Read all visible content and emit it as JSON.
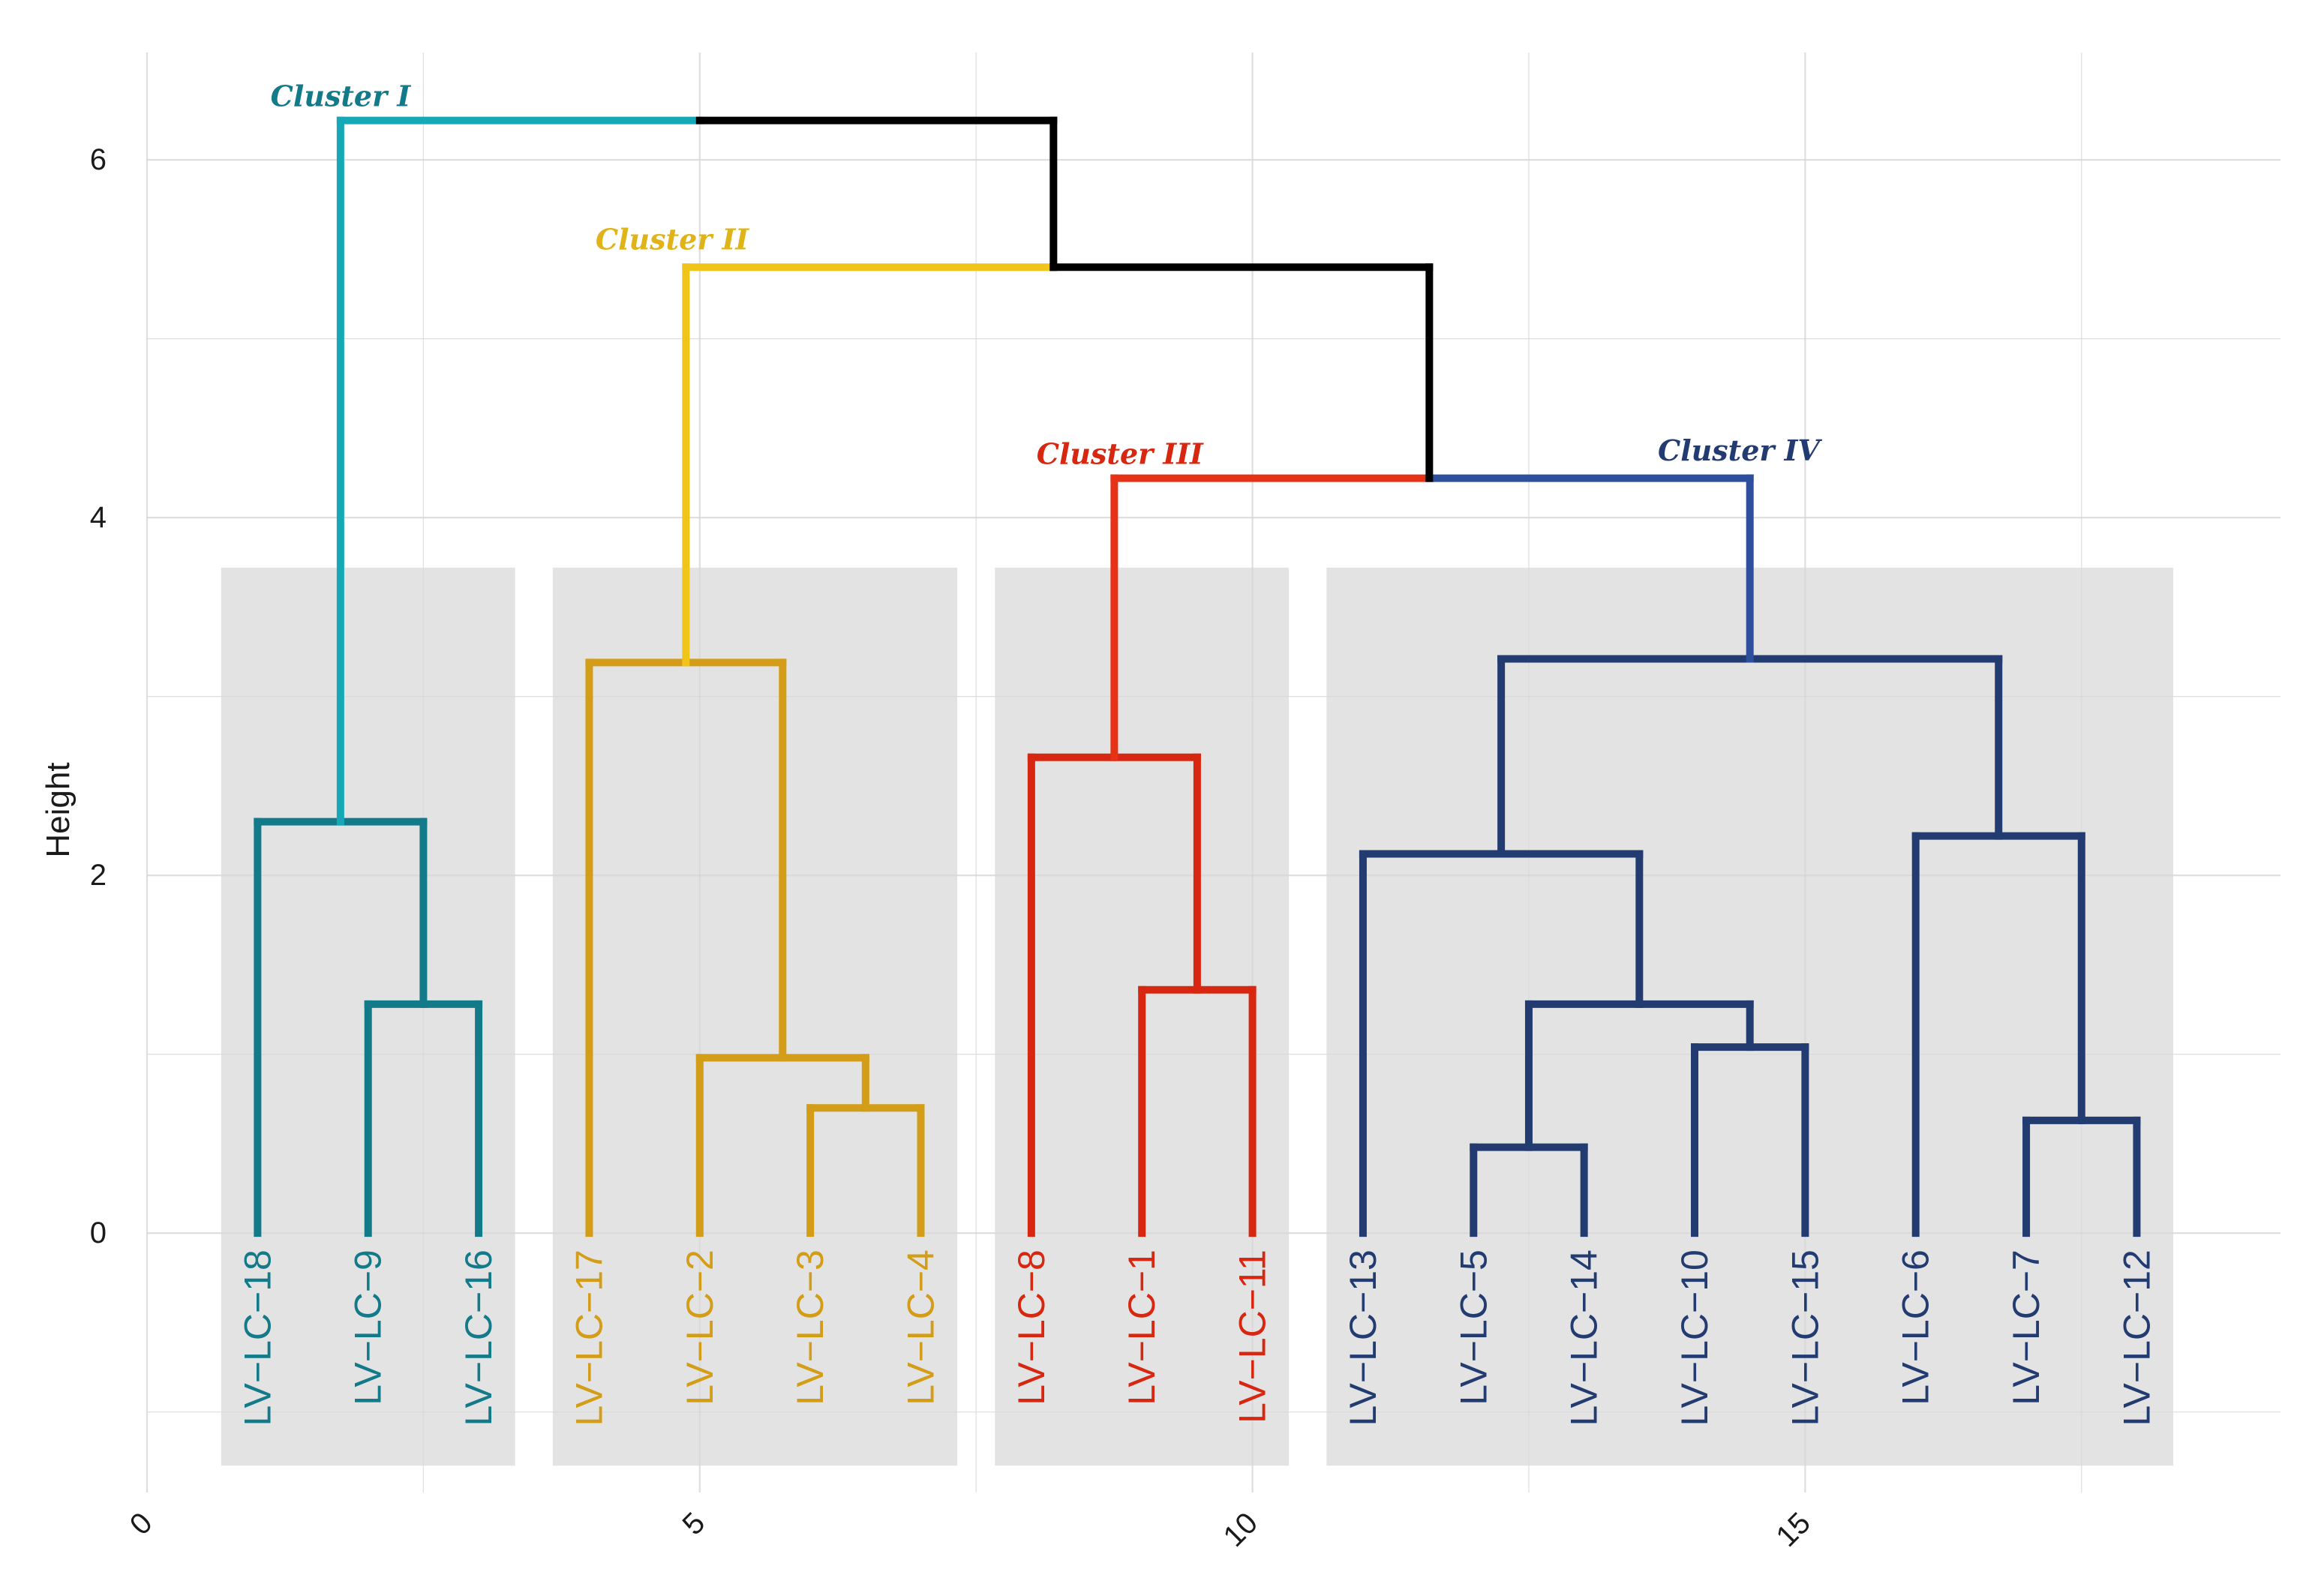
{
  "chart_data": {
    "type": "dendrogram",
    "title": "",
    "xlabel": "",
    "ylabel": "Height",
    "xlim": [
      0,
      19.3
    ],
    "ylim": [
      -1.45,
      6.6
    ],
    "x_ticks": [
      0,
      5,
      10,
      15
    ],
    "y_ticks": [
      0,
      2,
      4,
      6
    ],
    "grid": true,
    "leaves": [
      {
        "label": "LV−LC−18",
        "x": 1,
        "cluster": 0
      },
      {
        "label": "LV−LC−9",
        "x": 2,
        "cluster": 0
      },
      {
        "label": "LV−LC−16",
        "x": 3,
        "cluster": 0
      },
      {
        "label": "LV−LC−17",
        "x": 4,
        "cluster": 1
      },
      {
        "label": "LV−LC−2",
        "x": 5,
        "cluster": 1
      },
      {
        "label": "LV−LC−3",
        "x": 6,
        "cluster": 1
      },
      {
        "label": "LV−LC−4",
        "x": 7,
        "cluster": 1
      },
      {
        "label": "LV−LC−8",
        "x": 8,
        "cluster": 2
      },
      {
        "label": "LV−LC−1",
        "x": 9,
        "cluster": 2
      },
      {
        "label": "LV−LC−11",
        "x": 10,
        "cluster": 2
      },
      {
        "label": "LV−LC−13",
        "x": 11,
        "cluster": 3
      },
      {
        "label": "LV−LC−5",
        "x": 12,
        "cluster": 3
      },
      {
        "label": "LV−LC−14",
        "x": 13,
        "cluster": 3
      },
      {
        "label": "LV−LC−10",
        "x": 14,
        "cluster": 3
      },
      {
        "label": "LV−LC−15",
        "x": 15,
        "cluster": 3
      },
      {
        "label": "LV−LC−6",
        "x": 16,
        "cluster": 3
      },
      {
        "label": "LV−LC−7",
        "x": 17,
        "cluster": 3
      },
      {
        "label": "LV−LC−12",
        "x": 18,
        "cluster": 3
      }
    ],
    "clusters": [
      {
        "name": "Cluster I",
        "branch_color": "#17a8b8",
        "inner_color": "#137a8a",
        "label_color": "#137a8a",
        "x_range": [
          0.67,
          3.33
        ],
        "label_x": 1.75,
        "label_y": 6.3
      },
      {
        "name": "Cluster II",
        "branch_color": "#f0c419",
        "inner_color": "#d39d17",
        "label_color": "#e0b418",
        "x_range": [
          3.67,
          7.33
        ],
        "label_x": 4.75,
        "label_y": 5.5
      },
      {
        "name": "Cluster III",
        "branch_color": "#e63217",
        "inner_color": "#d82710",
        "label_color": "#d82710",
        "x_range": [
          7.67,
          10.33
        ],
        "label_x": 8.8,
        "label_y": 4.3
      },
      {
        "name": "Cluster IV",
        "branch_color": "#2e4f9e",
        "inner_color": "#223b70",
        "label_color": "#223b70",
        "x_range": [
          10.67,
          18.33
        ],
        "label_x": 14.4,
        "label_y": 4.32
      }
    ],
    "rect_y_range": [
      -1.3,
      3.72
    ],
    "segments": [
      {
        "x1": 1,
        "y1": 0,
        "x2": 1,
        "y2": 2.3,
        "color": "#137a8a"
      },
      {
        "x1": 2,
        "y1": 0,
        "x2": 2,
        "y2": 1.28,
        "color": "#137a8a"
      },
      {
        "x1": 3,
        "y1": 0,
        "x2": 3,
        "y2": 1.28,
        "color": "#137a8a"
      },
      {
        "x1": 2,
        "y1": 1.28,
        "x2": 3,
        "y2": 1.28,
        "color": "#137a8a"
      },
      {
        "x1": 2.5,
        "y1": 1.28,
        "x2": 2.5,
        "y2": 2.3,
        "color": "#137a8a"
      },
      {
        "x1": 1,
        "y1": 2.3,
        "x2": 2.5,
        "y2": 2.3,
        "color": "#137a8a"
      },
      {
        "x1": 1.75,
        "y1": 2.3,
        "x2": 1.75,
        "y2": 6.22,
        "color": "#17a8b8"
      },
      {
        "x1": 1.75,
        "y1": 6.22,
        "x2": 5,
        "y2": 6.22,
        "color": "#17a8b8"
      },
      {
        "x1": 4,
        "y1": 0,
        "x2": 4,
        "y2": 3.19,
        "color": "#d39d17"
      },
      {
        "x1": 5,
        "y1": 0,
        "x2": 5,
        "y2": 0.98,
        "color": "#d39d17"
      },
      {
        "x1": 6,
        "y1": 0,
        "x2": 6,
        "y2": 0.7,
        "color": "#d39d17"
      },
      {
        "x1": 7,
        "y1": 0,
        "x2": 7,
        "y2": 0.7,
        "color": "#d39d17"
      },
      {
        "x1": 6,
        "y1": 0.7,
        "x2": 7,
        "y2": 0.7,
        "color": "#d39d17"
      },
      {
        "x1": 6.5,
        "y1": 0.7,
        "x2": 6.5,
        "y2": 0.98,
        "color": "#d39d17"
      },
      {
        "x1": 5,
        "y1": 0.98,
        "x2": 6.5,
        "y2": 0.98,
        "color": "#d39d17"
      },
      {
        "x1": 5.75,
        "y1": 0.98,
        "x2": 5.75,
        "y2": 3.19,
        "color": "#d39d17"
      },
      {
        "x1": 4,
        "y1": 3.19,
        "x2": 5.75,
        "y2": 3.19,
        "color": "#d39d17"
      },
      {
        "x1": 4.875,
        "y1": 3.19,
        "x2": 4.875,
        "y2": 5.4,
        "color": "#f0c419"
      },
      {
        "x1": 4.875,
        "y1": 5.4,
        "x2": 8.2,
        "y2": 5.4,
        "color": "#f0c419"
      },
      {
        "x1": 8,
        "y1": 0,
        "x2": 8,
        "y2": 2.66,
        "color": "#d82710"
      },
      {
        "x1": 9,
        "y1": 0,
        "x2": 9,
        "y2": 1.36,
        "color": "#d82710"
      },
      {
        "x1": 10,
        "y1": 0,
        "x2": 10,
        "y2": 1.36,
        "color": "#d82710"
      },
      {
        "x1": 9,
        "y1": 1.36,
        "x2": 10,
        "y2": 1.36,
        "color": "#d82710"
      },
      {
        "x1": 9.5,
        "y1": 1.36,
        "x2": 9.5,
        "y2": 2.66,
        "color": "#d82710"
      },
      {
        "x1": 8,
        "y1": 2.66,
        "x2": 9.5,
        "y2": 2.66,
        "color": "#d82710"
      },
      {
        "x1": 8.75,
        "y1": 2.66,
        "x2": 8.75,
        "y2": 4.22,
        "color": "#e63217"
      },
      {
        "x1": 8.75,
        "y1": 4.22,
        "x2": 11.6,
        "y2": 4.22,
        "color": "#e63217"
      },
      {
        "x1": 11,
        "y1": 0,
        "x2": 11,
        "y2": 2.12,
        "color": "#223b70"
      },
      {
        "x1": 12,
        "y1": 0,
        "x2": 12,
        "y2": 0.48,
        "color": "#223b70"
      },
      {
        "x1": 13,
        "y1": 0,
        "x2": 13,
        "y2": 0.48,
        "color": "#223b70"
      },
      {
        "x1": 12,
        "y1": 0.48,
        "x2": 13,
        "y2": 0.48,
        "color": "#223b70"
      },
      {
        "x1": 14,
        "y1": 0,
        "x2": 14,
        "y2": 1.04,
        "color": "#223b70"
      },
      {
        "x1": 15,
        "y1": 0,
        "x2": 15,
        "y2": 1.04,
        "color": "#223b70"
      },
      {
        "x1": 14,
        "y1": 1.04,
        "x2": 15,
        "y2": 1.04,
        "color": "#223b70"
      },
      {
        "x1": 12.5,
        "y1": 0.48,
        "x2": 12.5,
        "y2": 1.28,
        "color": "#223b70"
      },
      {
        "x1": 14.5,
        "y1": 1.04,
        "x2": 14.5,
        "y2": 1.28,
        "color": "#223b70"
      },
      {
        "x1": 12.5,
        "y1": 1.28,
        "x2": 14.5,
        "y2": 1.28,
        "color": "#223b70"
      },
      {
        "x1": 13.5,
        "y1": 1.28,
        "x2": 13.5,
        "y2": 2.12,
        "color": "#223b70"
      },
      {
        "x1": 11,
        "y1": 2.12,
        "x2": 13.5,
        "y2": 2.12,
        "color": "#223b70"
      },
      {
        "x1": 16,
        "y1": 0,
        "x2": 16,
        "y2": 2.22,
        "color": "#223b70"
      },
      {
        "x1": 17,
        "y1": 0,
        "x2": 17,
        "y2": 0.63,
        "color": "#223b70"
      },
      {
        "x1": 18,
        "y1": 0,
        "x2": 18,
        "y2": 0.63,
        "color": "#223b70"
      },
      {
        "x1": 17,
        "y1": 0.63,
        "x2": 18,
        "y2": 0.63,
        "color": "#223b70"
      },
      {
        "x1": 17.5,
        "y1": 0.63,
        "x2": 17.5,
        "y2": 2.22,
        "color": "#223b70"
      },
      {
        "x1": 16,
        "y1": 2.22,
        "x2": 17.5,
        "y2": 2.22,
        "color": "#223b70"
      },
      {
        "x1": 12.25,
        "y1": 2.12,
        "x2": 12.25,
        "y2": 3.21,
        "color": "#223b70"
      },
      {
        "x1": 16.75,
        "y1": 2.22,
        "x2": 16.75,
        "y2": 3.21,
        "color": "#223b70"
      },
      {
        "x1": 12.25,
        "y1": 3.21,
        "x2": 16.75,
        "y2": 3.21,
        "color": "#223b70"
      },
      {
        "x1": 14.5,
        "y1": 3.21,
        "x2": 14.5,
        "y2": 4.22,
        "color": "#2e4f9e"
      },
      {
        "x1": 11.6,
        "y1": 4.22,
        "x2": 14.5,
        "y2": 4.22,
        "color": "#2e4f9e"
      },
      {
        "x1": 11.6,
        "y1": 4.22,
        "x2": 11.6,
        "y2": 5.4,
        "color": "#000000"
      },
      {
        "x1": 8.2,
        "y1": 5.4,
        "x2": 11.6,
        "y2": 5.4,
        "color": "#000000"
      },
      {
        "x1": 8.2,
        "y1": 5.4,
        "x2": 8.2,
        "y2": 6.22,
        "color": "#000000"
      },
      {
        "x1": 5,
        "y1": 6.22,
        "x2": 8.2,
        "y2": 6.22,
        "color": "#000000"
      }
    ]
  }
}
